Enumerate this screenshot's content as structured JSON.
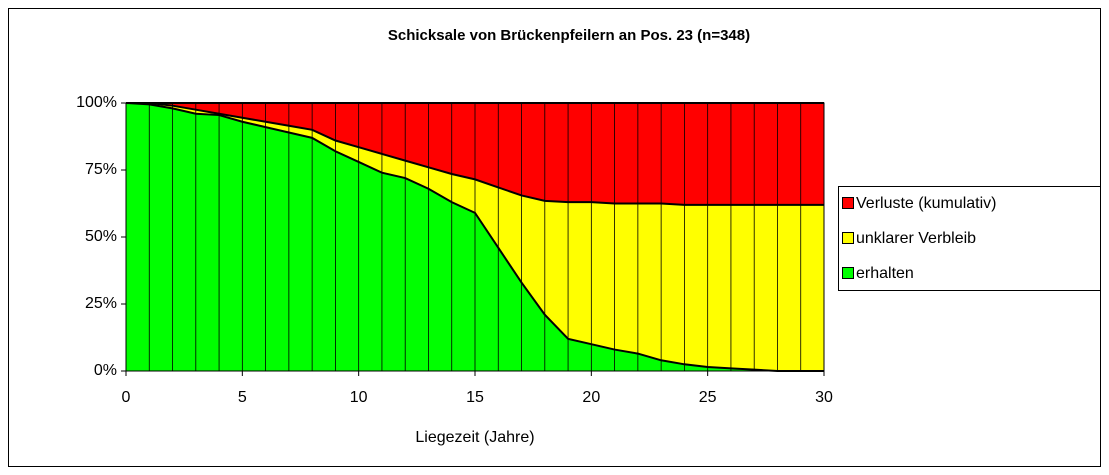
{
  "chart_data": {
    "type": "stacked_area",
    "title": "Schicksale von Brückenpfeilern an Pos. 23 (n=348)",
    "x_label": "Liegezeit (Jahre)",
    "x": [
      0,
      1,
      2,
      3,
      4,
      5,
      6,
      7,
      8,
      9,
      10,
      11,
      12,
      13,
      14,
      15,
      16,
      17,
      18,
      19,
      20,
      21,
      22,
      23,
      24,
      25,
      26,
      27,
      28,
      29,
      30
    ],
    "series": [
      {
        "name": "erhalten",
        "color": "#00ff00",
        "values": [
          100,
          99.5,
          98,
          96,
          95.5,
          93,
          91,
          89,
          87,
          82,
          78,
          74,
          72,
          68,
          63,
          59,
          46,
          33,
          21,
          12,
          10,
          8,
          6.5,
          4,
          2.5,
          1.5,
          1,
          0.5,
          0,
          0,
          0
        ]
      },
      {
        "name": "unklarer Verbleib",
        "color": "#ffff00",
        "values": [
          0,
          0.5,
          1,
          1.5,
          0.5,
          1.5,
          2,
          2.5,
          3,
          4,
          5.5,
          7,
          6.5,
          8,
          10.5,
          12.5,
          22.5,
          32.5,
          42.5,
          51,
          53,
          54.5,
          56,
          58.5,
          59.5,
          60.5,
          61,
          61.5,
          62,
          62,
          62
        ]
      },
      {
        "name": "Verluste (kumulativ)",
        "color": "#ff0000",
        "values": [
          0,
          0,
          1,
          2.5,
          4,
          5.5,
          7,
          8.5,
          10,
          14,
          16.5,
          19,
          21.5,
          24,
          26.5,
          28.5,
          31.5,
          34.5,
          36.5,
          37,
          37,
          37.5,
          37.5,
          37.5,
          38,
          38,
          38,
          38,
          38,
          38,
          38
        ]
      }
    ],
    "xlim": [
      0,
      30
    ],
    "xticks": [
      0,
      5,
      10,
      15,
      20,
      25,
      30
    ],
    "ylim": [
      0,
      100
    ],
    "yticks": [
      {
        "value": 0,
        "label": "0%"
      },
      {
        "value": 25,
        "label": "25%"
      },
      {
        "value": 50,
        "label": "50%"
      },
      {
        "value": 75,
        "label": "75%"
      },
      {
        "value": 100,
        "label": "100%"
      }
    ],
    "legend": "right"
  }
}
